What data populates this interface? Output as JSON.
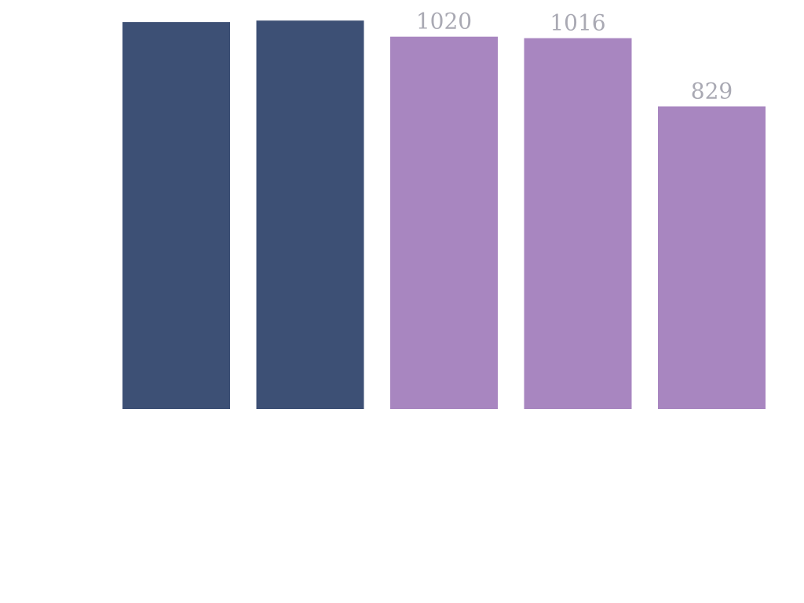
{
  "chart_data": {
    "type": "bar",
    "categories": [
      "",
      "",
      "",
      "",
      ""
    ],
    "values": [
      1060,
      1064,
      1020,
      1016,
      829
    ],
    "labels": [
      "",
      "",
      "1020",
      "1016",
      "829"
    ],
    "colors": [
      "#3d5075",
      "#3d5075",
      "#a886c0",
      "#a886c0",
      "#a886c0"
    ],
    "ylim": [
      0,
      1160
    ],
    "grid": false,
    "legend": "none"
  }
}
